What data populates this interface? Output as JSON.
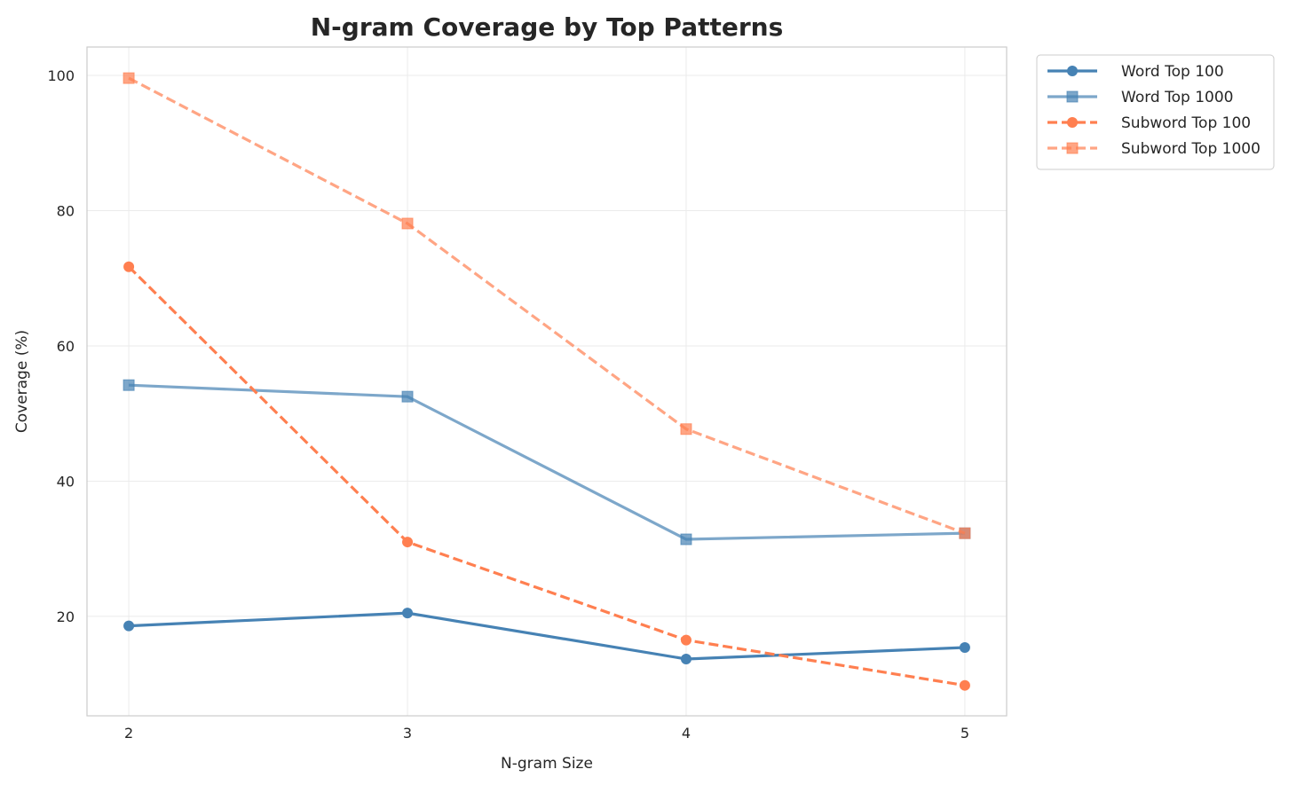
{
  "chart_data": {
    "type": "line",
    "title": "N-gram Coverage by Top Patterns",
    "xlabel": "N-gram Size",
    "ylabel": "Coverage (%)",
    "x": [
      2,
      3,
      4,
      5
    ],
    "xticks": [
      "2",
      "3",
      "4",
      "5"
    ],
    "yticks": [
      "20",
      "40",
      "60",
      "80",
      "100"
    ],
    "xlim": [
      1.85,
      5.15
    ],
    "ylim": [
      5.3,
      104.2
    ],
    "grid": true,
    "legend_placement": "outside-top-right",
    "series": [
      {
        "name": "Word Top 100",
        "values": [
          18.6,
          20.5,
          13.7,
          15.4
        ],
        "color": "#4682b4",
        "marker": "circle",
        "dashed": false,
        "alpha": 1
      },
      {
        "name": "Word Top 1000",
        "values": [
          54.2,
          52.5,
          31.4,
          32.3
        ],
        "color": "#4682b4",
        "marker": "square",
        "dashed": false,
        "alpha": 0.7
      },
      {
        "name": "Subword Top 100",
        "values": [
          71.7,
          31.0,
          16.5,
          9.8
        ],
        "color": "#ff7f50",
        "marker": "circle",
        "dashed": true,
        "alpha": 1
      },
      {
        "name": "Subword Top 1000",
        "values": [
          99.6,
          78.1,
          47.7,
          32.3
        ],
        "color": "#ff7f50",
        "marker": "square",
        "dashed": true,
        "alpha": 0.7
      }
    ]
  }
}
